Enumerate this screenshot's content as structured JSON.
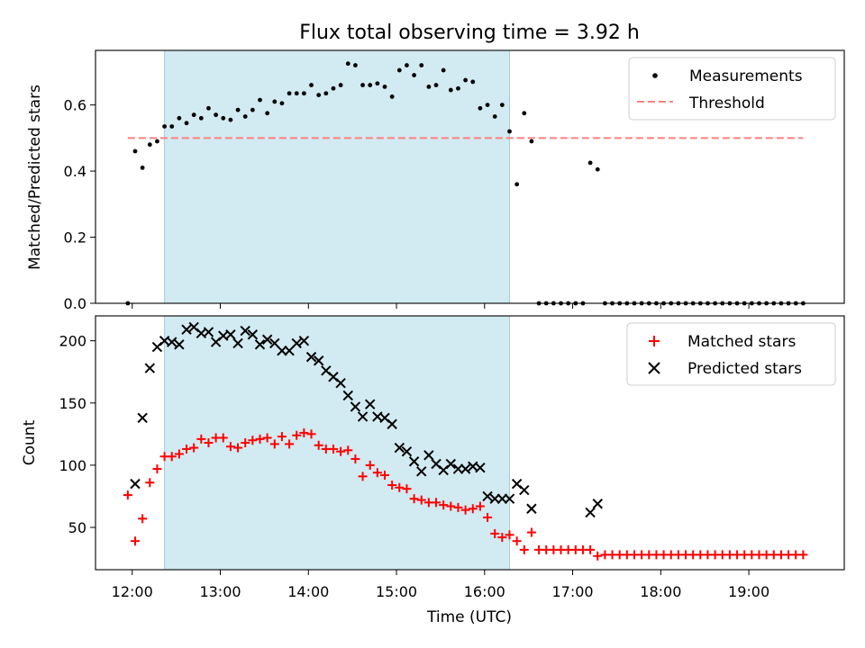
{
  "chart_data": [
    {
      "type": "scatter",
      "title": "Flux total observing time = 3.92 h",
      "xlabel": "",
      "ylabel": "Matched/Predicted stars",
      "xlim": [
        "11:35",
        "20:05"
      ],
      "ylim": [
        0,
        0.765
      ],
      "yticks": [
        0.0,
        0.2,
        0.4,
        0.6
      ],
      "ytick_labels": [
        "0.0",
        "0.2",
        "0.4",
        "0.6"
      ],
      "shaded_span": [
        "12:22",
        "16:17"
      ],
      "shaded_color": "#add8e6",
      "legend_position": "upper right",
      "series": [
        {
          "name": "Measurements",
          "marker": "dot",
          "color": "#000000",
          "x": [
            "11:57",
            "12:02",
            "12:07",
            "12:12",
            "12:17",
            "12:22",
            "12:27",
            "12:32",
            "12:37",
            "12:42",
            "12:47",
            "12:52",
            "12:57",
            "13:02",
            "13:07",
            "13:12",
            "13:17",
            "13:22",
            "13:27",
            "13:32",
            "13:37",
            "13:42",
            "13:47",
            "13:52",
            "13:57",
            "14:02",
            "14:07",
            "14:12",
            "14:17",
            "14:22",
            "14:27",
            "14:32",
            "14:37",
            "14:42",
            "14:47",
            "14:52",
            "14:57",
            "15:02",
            "15:07",
            "15:12",
            "15:17",
            "15:22",
            "15:27",
            "15:32",
            "15:37",
            "15:42",
            "15:47",
            "15:52",
            "15:57",
            "16:02",
            "16:07",
            "16:12",
            "16:17",
            "16:22",
            "16:27",
            "16:32",
            "16:37",
            "16:42",
            "16:47",
            "16:52",
            "16:57",
            "17:02",
            "17:07",
            "17:12",
            "17:17",
            "17:22",
            "17:27",
            "17:32",
            "17:37",
            "17:42",
            "17:47",
            "17:52",
            "17:57",
            "18:02",
            "18:07",
            "18:12",
            "18:17",
            "18:22",
            "18:27",
            "18:32",
            "18:37",
            "18:42",
            "18:47",
            "18:52",
            "18:57",
            "19:02",
            "19:07",
            "19:12",
            "19:17",
            "19:22",
            "19:27",
            "19:32",
            "19:37"
          ],
          "y": [
            0.0,
            0.46,
            0.41,
            0.48,
            0.49,
            0.535,
            0.535,
            0.56,
            0.545,
            0.57,
            0.56,
            0.59,
            0.57,
            0.56,
            0.555,
            0.585,
            0.565,
            0.585,
            0.615,
            0.575,
            0.61,
            0.605,
            0.635,
            0.635,
            0.635,
            0.66,
            0.63,
            0.635,
            0.65,
            0.66,
            0.725,
            0.72,
            0.66,
            0.66,
            0.665,
            0.655,
            0.625,
            0.705,
            0.72,
            0.69,
            0.72,
            0.655,
            0.66,
            0.705,
            0.645,
            0.65,
            0.675,
            0.67,
            0.59,
            0.6,
            0.565,
            0.6,
            0.52,
            0.36,
            0.575,
            0.49,
            0.0,
            0.0,
            0.0,
            0.0,
            0.0,
            0.0,
            0.0,
            0.425,
            0.405,
            0.0,
            0.0,
            0.0,
            0.0,
            0.0,
            0.0,
            0.0,
            0.0,
            0.0,
            0.0,
            0.0,
            0.0,
            0.0,
            0.0,
            0.0,
            0.0,
            0.0,
            0.0,
            0.0,
            0.0,
            0.0,
            0.0,
            0.0,
            0.0,
            0.0,
            0.0,
            0.0,
            0.0
          ]
        },
        {
          "name": "Threshold",
          "type": "line",
          "style": "dashed",
          "color": "#ff7f7f",
          "x": [
            "11:57",
            "19:37"
          ],
          "y": [
            0.5,
            0.5
          ]
        }
      ]
    },
    {
      "type": "scatter",
      "title": "",
      "xlabel": "Time (UTC)",
      "ylabel": "Count",
      "xlim": [
        "11:35",
        "20:05"
      ],
      "ylim": [
        16,
        220
      ],
      "yticks": [
        50,
        100,
        150,
        200
      ],
      "ytick_labels": [
        "50",
        "100",
        "150",
        "200"
      ],
      "xticks": [
        "12:00",
        "13:00",
        "14:00",
        "15:00",
        "16:00",
        "17:00",
        "18:00",
        "19:00"
      ],
      "xtick_labels": [
        "12:00",
        "13:00",
        "14:00",
        "15:00",
        "16:00",
        "17:00",
        "18:00",
        "19:00"
      ],
      "shaded_span": [
        "12:22",
        "16:17"
      ],
      "shaded_color": "#add8e6",
      "legend_position": "upper right",
      "series": [
        {
          "name": "Matched stars",
          "marker": "plus",
          "color": "#ff0000",
          "x": [
            "11:57",
            "12:02",
            "12:07",
            "12:12",
            "12:17",
            "12:22",
            "12:27",
            "12:32",
            "12:37",
            "12:42",
            "12:47",
            "12:52",
            "12:57",
            "13:02",
            "13:07",
            "13:12",
            "13:17",
            "13:22",
            "13:27",
            "13:32",
            "13:37",
            "13:42",
            "13:47",
            "13:52",
            "13:57",
            "14:02",
            "14:07",
            "14:12",
            "14:17",
            "14:22",
            "14:27",
            "14:32",
            "14:37",
            "14:42",
            "14:47",
            "14:52",
            "14:57",
            "15:02",
            "15:07",
            "15:12",
            "15:17",
            "15:22",
            "15:27",
            "15:32",
            "15:37",
            "15:42",
            "15:47",
            "15:52",
            "15:57",
            "16:02",
            "16:07",
            "16:12",
            "16:17",
            "16:22",
            "16:27",
            "16:32",
            "16:37",
            "16:42",
            "16:47",
            "16:52",
            "16:57",
            "17:02",
            "17:07",
            "17:12",
            "17:17",
            "17:22",
            "17:27",
            "17:32",
            "17:37",
            "17:42",
            "17:47",
            "17:52",
            "17:57",
            "18:02",
            "18:07",
            "18:12",
            "18:17",
            "18:22",
            "18:27",
            "18:32",
            "18:37",
            "18:42",
            "18:47",
            "18:52",
            "18:57",
            "19:02",
            "19:07",
            "19:12",
            "19:17",
            "19:22",
            "19:27",
            "19:32",
            "19:37"
          ],
          "y": [
            76,
            39,
            57,
            86,
            97,
            107,
            107,
            109,
            113,
            114,
            121,
            118,
            122,
            122,
            115,
            114,
            118,
            120,
            121,
            122,
            117,
            123,
            117,
            124,
            126,
            125,
            116,
            113,
            113,
            111,
            112,
            105,
            91,
            100,
            94,
            92,
            84,
            82,
            81,
            73,
            72,
            70,
            70,
            68,
            67,
            66,
            64,
            65,
            67,
            58,
            45,
            42,
            44,
            39,
            32,
            46,
            32,
            32,
            32,
            32,
            32,
            32,
            32,
            32,
            27,
            28,
            28,
            28,
            28,
            28,
            28,
            28,
            28,
            28,
            28,
            28,
            28,
            28,
            28,
            28,
            28,
            28,
            28,
            28,
            28,
            28,
            28,
            28,
            28,
            28,
            28,
            28,
            28
          ]
        },
        {
          "name": "Predicted stars",
          "marker": "x",
          "color": "#000000",
          "x": [
            "12:02",
            "12:07",
            "12:12",
            "12:17",
            "12:22",
            "12:27",
            "12:32",
            "12:37",
            "12:42",
            "12:47",
            "12:52",
            "12:57",
            "13:02",
            "13:07",
            "13:12",
            "13:17",
            "13:22",
            "13:27",
            "13:32",
            "13:37",
            "13:42",
            "13:47",
            "13:52",
            "13:57",
            "14:02",
            "14:07",
            "14:12",
            "14:17",
            "14:22",
            "14:27",
            "14:32",
            "14:37",
            "14:42",
            "14:47",
            "14:52",
            "14:57",
            "15:02",
            "15:07",
            "15:12",
            "15:17",
            "15:22",
            "15:27",
            "15:32",
            "15:37",
            "15:42",
            "15:47",
            "15:52",
            "15:57",
            "16:02",
            "16:07",
            "16:12",
            "16:17",
            "16:22",
            "16:27",
            "16:32",
            "17:12",
            "17:17"
          ],
          "y": [
            85,
            138,
            178,
            195,
            200,
            199,
            197,
            209,
            211,
            206,
            207,
            199,
            204,
            205,
            198,
            208,
            205,
            197,
            201,
            198,
            192,
            192,
            198,
            200,
            187,
            184,
            176,
            171,
            166,
            156,
            147,
            139,
            149,
            139,
            138,
            133,
            114,
            111,
            103,
            95,
            108,
            101,
            96,
            101,
            97,
            97,
            99,
            98,
            75,
            73,
            73,
            73,
            85,
            80,
            65,
            62,
            69
          ]
        }
      ]
    }
  ]
}
